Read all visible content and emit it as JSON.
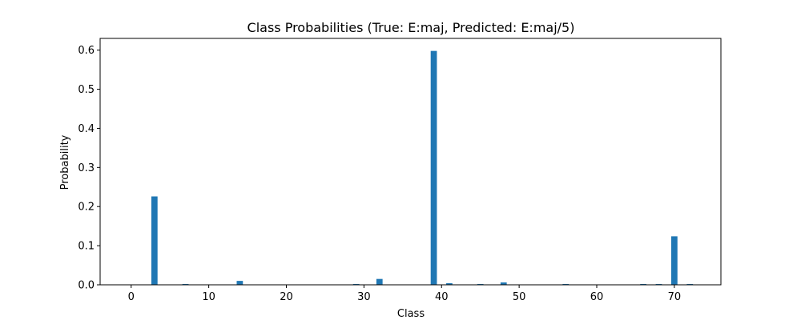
{
  "chart_data": {
    "type": "bar",
    "title": "Class Probabilities (True: E:maj, Predicted: E:maj/5)",
    "xlabel": "Class",
    "ylabel": "Probability",
    "xlim": [
      -4,
      76
    ],
    "ylim": [
      0,
      0.63
    ],
    "xticks": [
      0,
      10,
      20,
      30,
      40,
      50,
      60,
      70
    ],
    "yticks": [
      0.0,
      0.1,
      0.2,
      0.3,
      0.4,
      0.5,
      0.6
    ],
    "ytick_labels": [
      "0.0",
      "0.1",
      "0.2",
      "0.3",
      "0.4",
      "0.5",
      "0.6"
    ],
    "grid": false,
    "bar_color": "#1f77b4",
    "x": [
      3,
      7,
      14,
      29,
      32,
      39,
      41,
      45,
      48,
      56,
      66,
      68,
      70,
      72
    ],
    "values": [
      0.226,
      0.002,
      0.01,
      0.002,
      0.015,
      0.598,
      0.004,
      0.002,
      0.006,
      0.002,
      0.002,
      0.002,
      0.124,
      0.002
    ]
  }
}
